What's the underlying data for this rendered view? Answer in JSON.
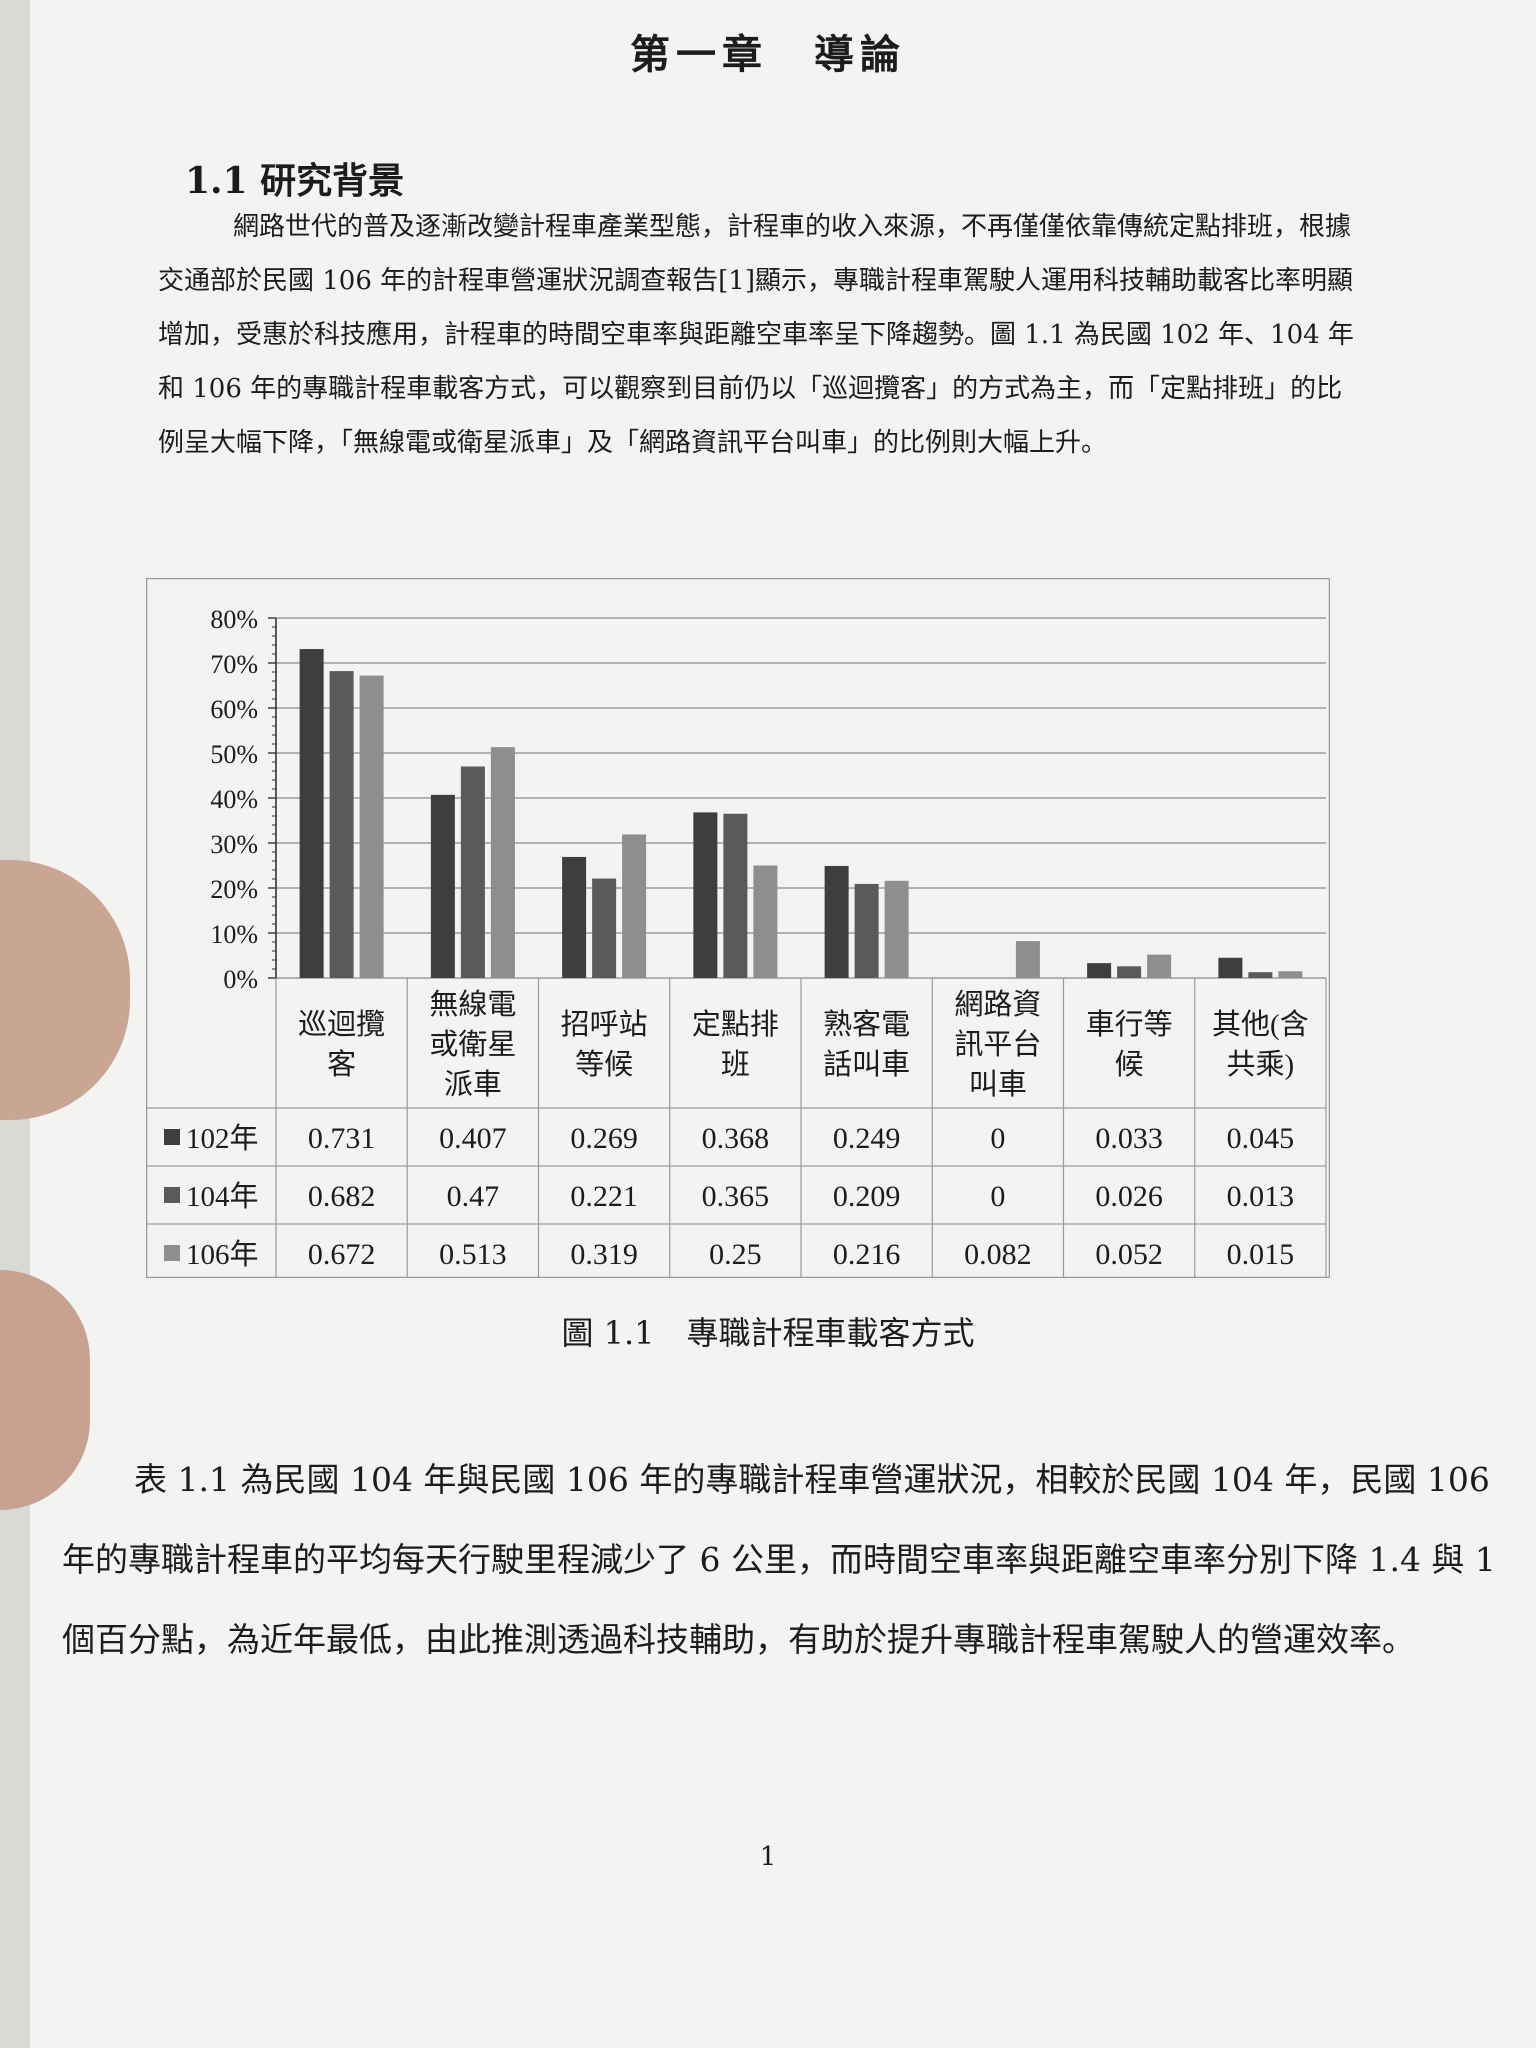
{
  "document": {
    "chapter_title": "第一章　導論",
    "section_title": "1.1 研究背景",
    "paragraph_1": "網路世代的普及逐漸改變計程車產業型態，計程車的收入來源，不再僅僅依靠傳統定點排班，根據交通部於民國 106 年的計程車營運狀況調查報告[1]顯示，專職計程車駕駛人運用科技輔助載客比率明顯增加，受惠於科技應用，計程車的時間空車率與距離空車率呈下降趨勢。圖 1.1 為民國 102 年、104 年和 106 年的專職計程車載客方式，可以觀察到目前仍以「巡迴攬客」的方式為主，而「定點排班」的比例呈大幅下降，「無線電或衛星派車」及「網路資訊平台叫車」的比例則大幅上升。",
    "figure_caption": "圖 1.1　專職計程車載客方式",
    "paragraph_2": "表 1.1 為民國 104 年與民國 106 年的專職計程車營運狀況，相較於民國 104 年，民國 106 年的專職計程車的平均每天行駛里程減少了 6 公里，而時間空車率與距離空車率分別下降 1.4 與 1 個百分點，為近年最低，由此推測透過科技輔助，有助於提升專職計程車駕駛人的營運效率。",
    "page_number": "1"
  },
  "chart_data": {
    "type": "bar",
    "categories": [
      "巡迴攬客",
      "無線電或衛星派車",
      "招呼站等候",
      "定點排班",
      "熟客電話叫車",
      "網路資訊平台叫車",
      "車行等候",
      "其他(含共乘)"
    ],
    "category_lines": [
      [
        "巡迴攬",
        "客"
      ],
      [
        "無線電",
        "或衛星",
        "派車"
      ],
      [
        "招呼站",
        "等候"
      ],
      [
        "定點排",
        "班"
      ],
      [
        "熟客電",
        "話叫車"
      ],
      [
        "網路資",
        "訊平台",
        "叫車"
      ],
      [
        "車行等",
        "候"
      ],
      [
        "其他(含",
        "共乘)"
      ]
    ],
    "series": [
      {
        "name": "102年",
        "color": "#3e3e3e",
        "values": [
          0.731,
          0.407,
          0.269,
          0.368,
          0.249,
          0,
          0.033,
          0.045
        ]
      },
      {
        "name": "104年",
        "color": "#5a5a5a",
        "values": [
          0.682,
          0.47,
          0.221,
          0.365,
          0.209,
          0,
          0.026,
          0.013
        ]
      },
      {
        "name": "106年",
        "color": "#8e8e8e",
        "values": [
          0.672,
          0.513,
          0.319,
          0.25,
          0.216,
          0.082,
          0.052,
          0.015
        ]
      }
    ],
    "yticks": [
      "0%",
      "10%",
      "20%",
      "30%",
      "40%",
      "50%",
      "60%",
      "70%",
      "80%"
    ],
    "ylim": [
      0,
      0.8
    ],
    "grid": true,
    "legend": "data-table"
  }
}
